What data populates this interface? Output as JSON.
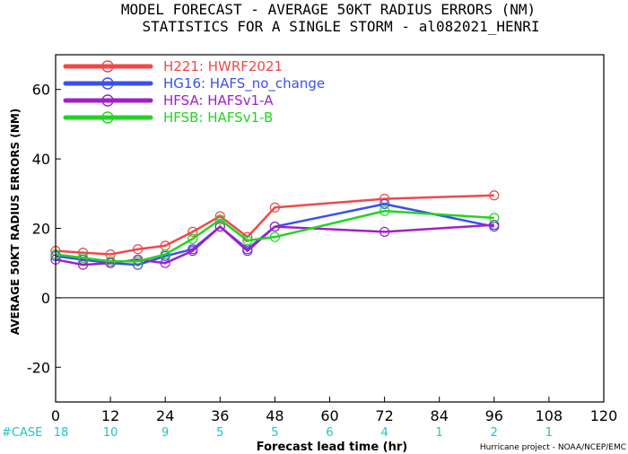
{
  "chart_data": {
    "type": "line",
    "title": [
      "MODEL FORECAST - AVERAGE 50KT RADIUS ERRORS (NM)",
      "STATISTICS FOR A SINGLE STORM - al082021_HENRI"
    ],
    "xlabel": "Forecast lead time (hr)",
    "ylabel": "AVERAGE 50KT RADIUS ERRORS (NM)",
    "xlim": [
      0,
      120
    ],
    "ylim": [
      -30,
      70
    ],
    "xticks": [
      0,
      12,
      24,
      36,
      48,
      60,
      72,
      84,
      96,
      108,
      120
    ],
    "yticks": [
      -20,
      0,
      20,
      40,
      60
    ],
    "zero_line": true,
    "legend_placement": "top-left",
    "case_label": "#CASE",
    "case_counts": [
      {
        "x": 0,
        "n": "18"
      },
      {
        "x": 12,
        "n": "10"
      },
      {
        "x": 24,
        "n": "9"
      },
      {
        "x": 36,
        "n": "5"
      },
      {
        "x": 48,
        "n": "5"
      },
      {
        "x": 60,
        "n": "6"
      },
      {
        "x": 72,
        "n": "4"
      },
      {
        "x": 84,
        "n": "1"
      },
      {
        "x": 96,
        "n": "2"
      },
      {
        "x": 108,
        "n": "1"
      }
    ],
    "credit": "Hurricane project - NOAA/NCEP/EMC",
    "series": [
      {
        "name": "H221: HWRF2021",
        "color": "#f04848",
        "x": [
          0,
          6,
          12,
          18,
          24,
          30,
          36,
          42,
          48,
          72,
          96
        ],
        "y": [
          13.5,
          13,
          12.5,
          14,
          15,
          19,
          23.5,
          17.5,
          26,
          28.5,
          29.5
        ]
      },
      {
        "name": "HG16: HAFS_no_change",
        "color": "#3a4ff0",
        "x": [
          0,
          6,
          12,
          18,
          24,
          30,
          36,
          42,
          48,
          72,
          96
        ],
        "y": [
          12,
          11,
          10,
          9.5,
          12,
          14,
          20.5,
          14,
          20.5,
          27,
          20.5
        ]
      },
      {
        "name": "HFSA: HAFSv1-A",
        "color": "#a020c8",
        "x": [
          0,
          6,
          12,
          18,
          24,
          30,
          36,
          42,
          48,
          72,
          96
        ],
        "y": [
          11,
          9.5,
          10,
          11,
          10,
          13.5,
          20.5,
          13.5,
          20.5,
          19,
          21
        ]
      },
      {
        "name": "HFSB: HAFSv1-B",
        "color": "#22d422",
        "x": [
          0,
          6,
          12,
          18,
          24,
          30,
          36,
          42,
          48,
          72,
          96
        ],
        "y": [
          12.5,
          11.5,
          10.5,
          10.5,
          12.5,
          17,
          22.5,
          16.5,
          17.5,
          25,
          23
        ]
      }
    ]
  }
}
